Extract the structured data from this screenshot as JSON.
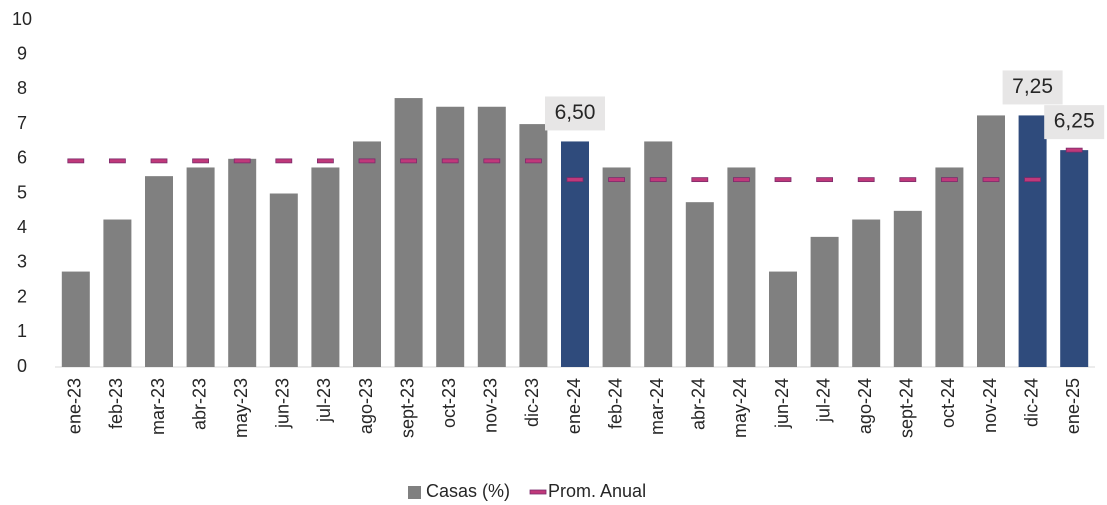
{
  "chart_data": {
    "type": "bar",
    "categories": [
      "ene-23",
      "feb-23",
      "mar-23",
      "abr-23",
      "may-23",
      "jun-23",
      "jul-23",
      "ago-23",
      "sept-23",
      "oct-23",
      "nov-23",
      "dic-23",
      "ene-24",
      "feb-24",
      "mar-24",
      "abr-24",
      "may-24",
      "jun-24",
      "jul-24",
      "ago-24",
      "sept-24",
      "oct-24",
      "nov-24",
      "dic-24",
      "ene-25"
    ],
    "series": [
      {
        "name": "Casas (%)",
        "type": "bar",
        "color": "#808080",
        "colors": [
          "#808080",
          "#808080",
          "#808080",
          "#808080",
          "#808080",
          "#808080",
          "#808080",
          "#808080",
          "#808080",
          "#808080",
          "#808080",
          "#808080",
          "#2f4b7c",
          "#808080",
          "#808080",
          "#808080",
          "#808080",
          "#808080",
          "#808080",
          "#808080",
          "#808080",
          "#808080",
          "#808080",
          "#2f4b7c",
          "#2f4b7c"
        ],
        "values": [
          2.75,
          4.25,
          5.5,
          5.75,
          6.0,
          5.0,
          5.75,
          6.5,
          7.75,
          7.5,
          7.5,
          7.0,
          6.5,
          5.75,
          6.5,
          4.75,
          5.75,
          2.75,
          3.75,
          4.25,
          4.5,
          5.75,
          7.25,
          7.25,
          6.25
        ],
        "value_labels": [
          null,
          null,
          null,
          null,
          null,
          null,
          null,
          null,
          null,
          null,
          null,
          null,
          "6,50",
          null,
          null,
          null,
          null,
          null,
          null,
          null,
          null,
          null,
          null,
          "7,25",
          "6,25"
        ]
      },
      {
        "name": "Prom. Anual",
        "type": "marker",
        "color": "#c0397a",
        "values": [
          5.94,
          5.94,
          5.94,
          5.94,
          5.94,
          5.94,
          5.94,
          5.94,
          5.94,
          5.94,
          5.94,
          5.94,
          5.4,
          5.4,
          5.4,
          5.4,
          5.4,
          5.4,
          5.4,
          5.4,
          5.4,
          5.4,
          5.4,
          5.4,
          6.25
        ]
      }
    ],
    "ylim": [
      0,
      10
    ],
    "yticks": [
      0,
      1,
      2,
      3,
      4,
      5,
      6,
      7,
      8,
      9,
      10
    ],
    "grid": false,
    "legend": "bottom"
  }
}
